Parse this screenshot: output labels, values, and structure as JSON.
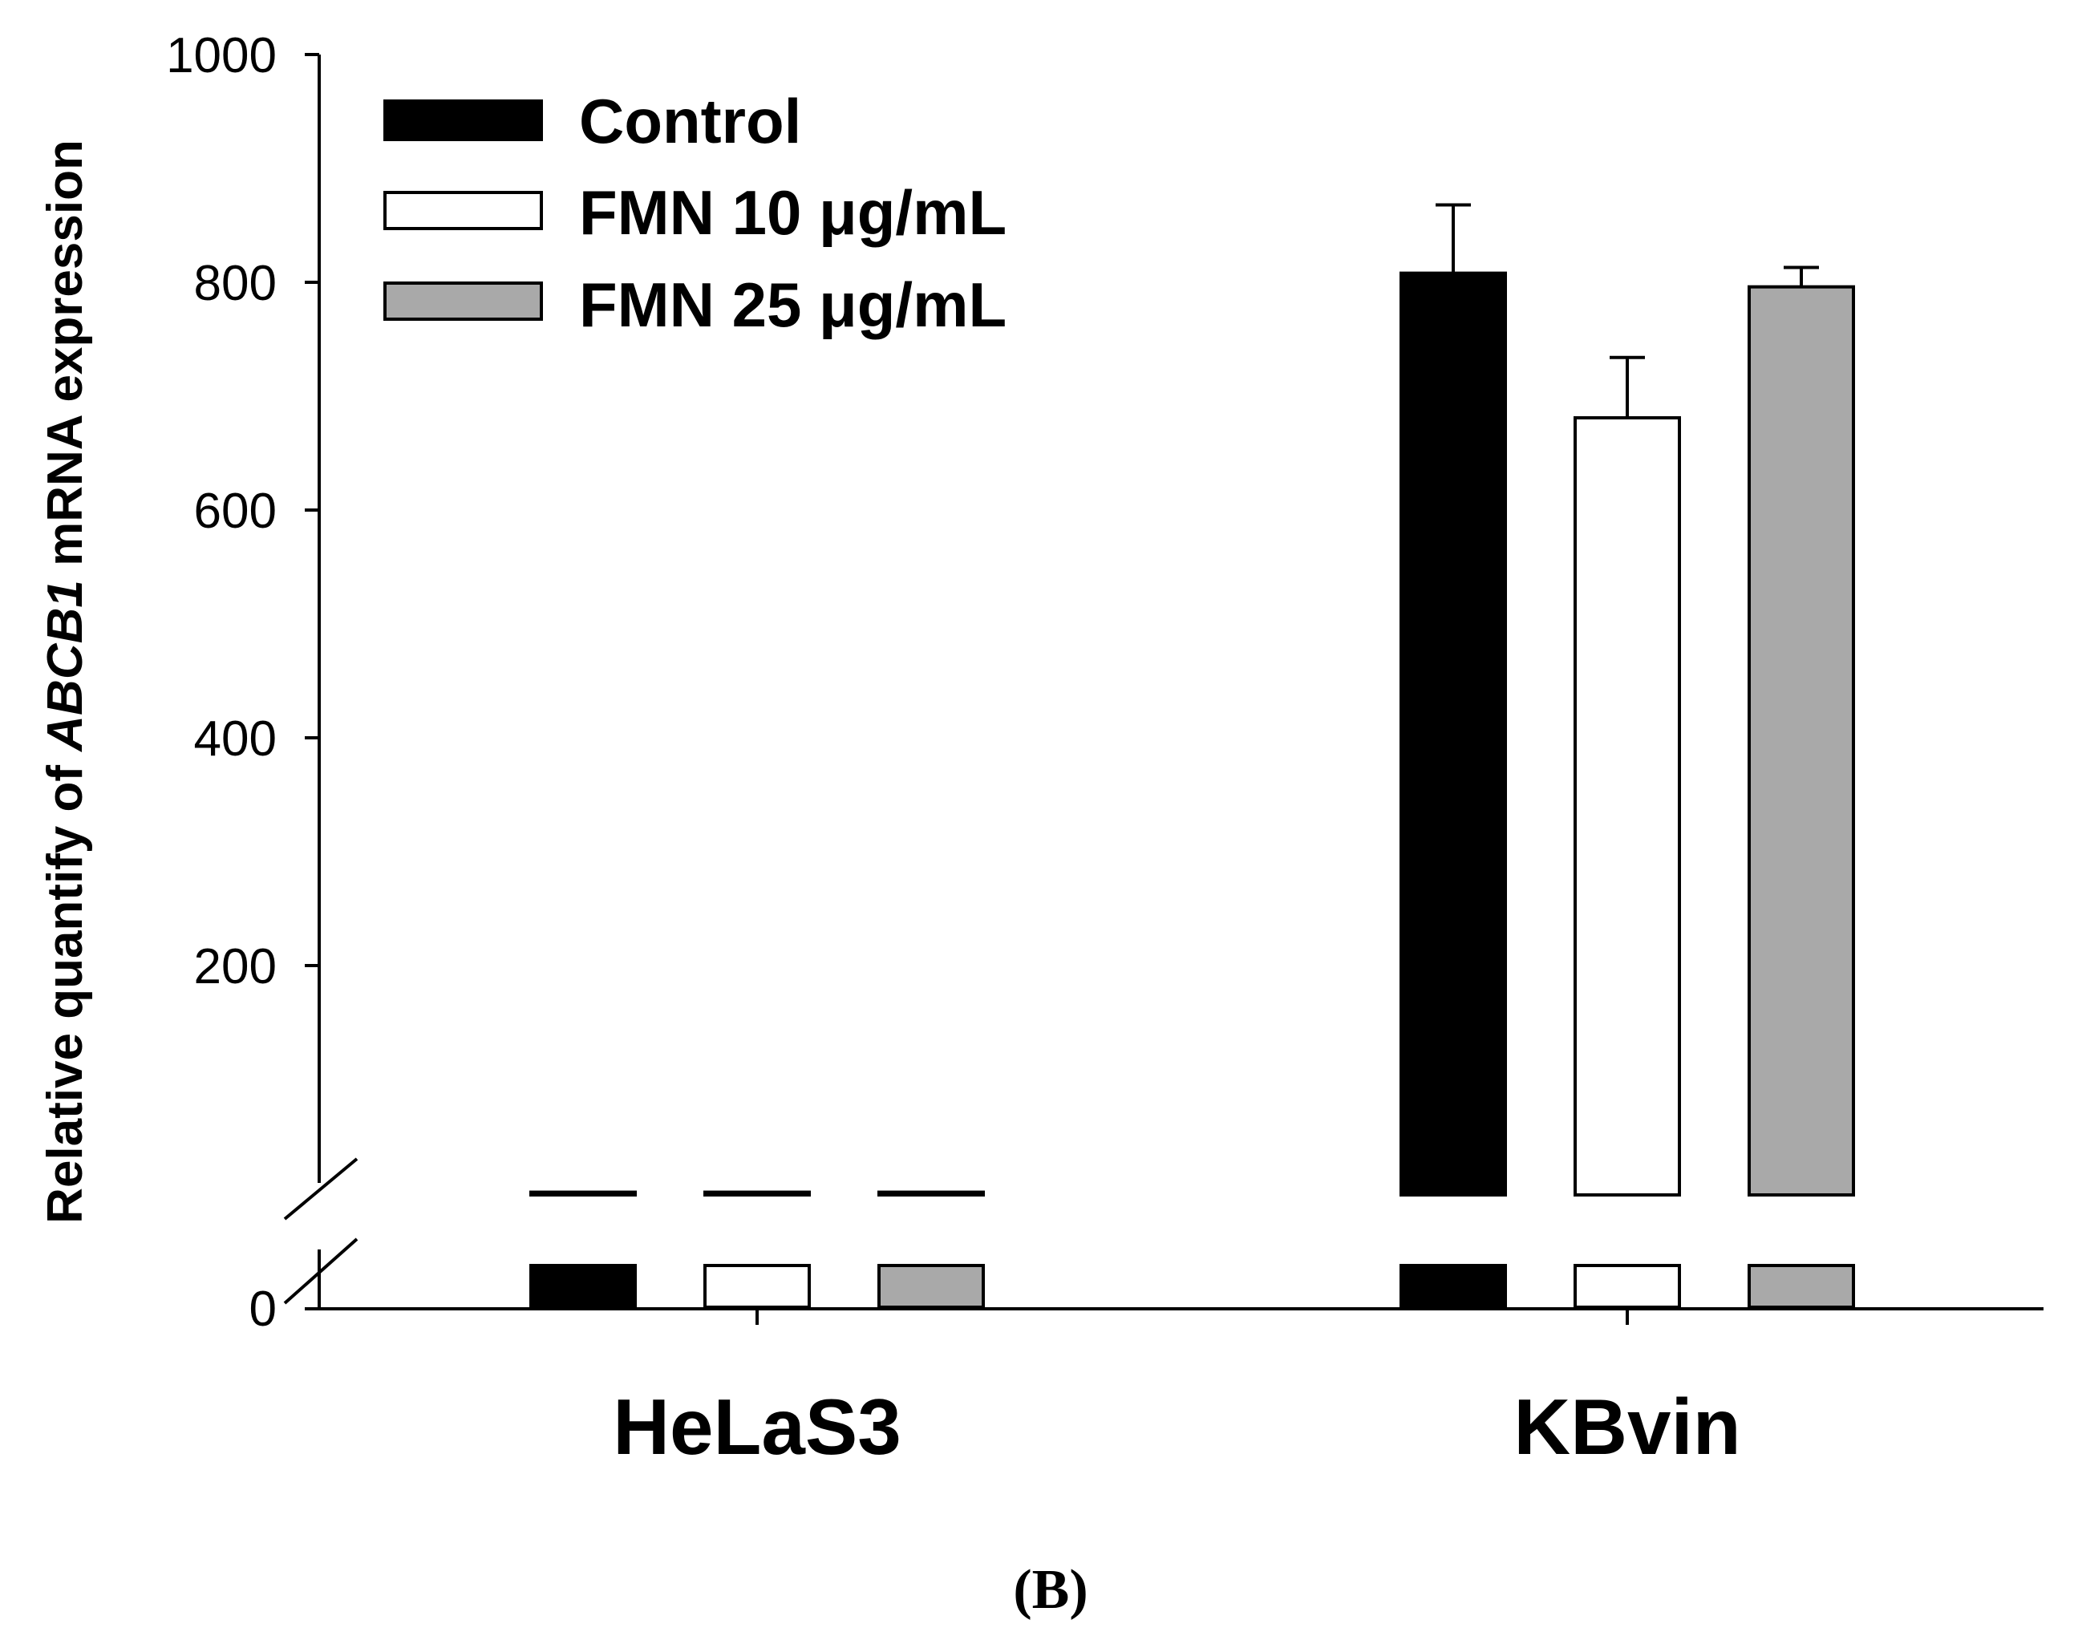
{
  "chart_data": {
    "type": "bar",
    "title": "",
    "categories": [
      "HeLaS3",
      "KBvin"
    ],
    "series": [
      {
        "name": "Control",
        "color": "#000000",
        "values": [
          1,
          808
        ],
        "errors": [
          0,
          60
        ]
      },
      {
        "name": "FMN 10 μg/mL",
        "color": "#ffffff",
        "values": [
          1,
          681
        ],
        "errors": [
          0,
          53
        ]
      },
      {
        "name": "FMN 25 μg/mL",
        "color": "#a9a9a9",
        "values": [
          1,
          796
        ],
        "errors": [
          0,
          17
        ]
      }
    ],
    "ylabel": {
      "pre": "Relative quantify of ",
      "gene": "ABCB1",
      "post": " mRNA expression"
    },
    "xlabel": "",
    "ylim": [
      0,
      1000
    ],
    "y_ticks": [
      "200",
      "400",
      "600",
      "800",
      "1000"
    ],
    "y_zero_label": "0",
    "axis_break": true,
    "legend_position": "top-left"
  },
  "panel_label": "(B)"
}
